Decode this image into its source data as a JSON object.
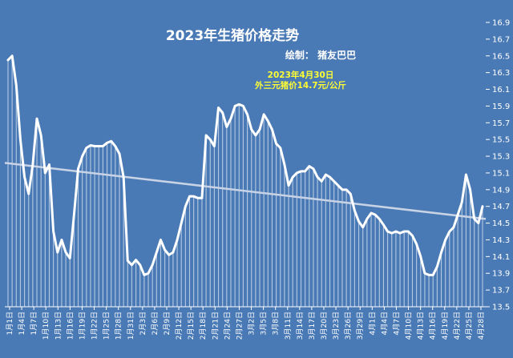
{
  "chart_data": {
    "type": "line",
    "title": "2023年生猪价格走势",
    "credit": "绘制： 猪友巴巴",
    "annotations": [
      "2023年4月30日",
      "外三元猪价14.7元/公斤"
    ],
    "y_axis_position": "right",
    "ylim": [
      13.5,
      16.9
    ],
    "yticks": [
      13.5,
      13.7,
      13.9,
      14.1,
      14.3,
      14.5,
      14.7,
      14.9,
      15.1,
      15.3,
      15.5,
      15.7,
      15.9,
      16.1,
      16.3,
      16.5,
      16.7,
      16.9
    ],
    "x_tick_labels": [
      "1月1日",
      "1月4日",
      "1月7日",
      "1月10日",
      "1月13日",
      "1月16日",
      "1月19日",
      "1月22日",
      "1月25日",
      "1月28日",
      "1月31日",
      "2月3日",
      "2月6日",
      "2月9日",
      "2月12日",
      "2月15日",
      "2月18日",
      "2月21日",
      "2月24日",
      "2月27日",
      "3月2日",
      "3月5日",
      "3月8日",
      "3月11日",
      "3月14日",
      "3月17日",
      "3月20日",
      "3月23日",
      "3月26日",
      "3月29日",
      "4月1日",
      "4月4日",
      "4月7日",
      "4月10日",
      "4月13日",
      "4月16日",
      "4月19日",
      "4月22日",
      "4月25日",
      "4月28日"
    ],
    "series": [
      {
        "values": [
          16.45,
          16.5,
          16.15,
          15.5,
          15.05,
          14.85,
          15.2,
          15.75,
          15.55,
          15.1,
          15.2,
          14.4,
          14.15,
          14.3,
          14.15,
          14.08,
          14.6,
          15.15,
          15.3,
          15.4,
          15.43,
          15.42,
          15.42,
          15.42,
          15.46,
          15.48,
          15.42,
          15.33,
          15.05,
          14.05,
          14.0,
          14.06,
          14.0,
          13.88,
          13.9,
          14.0,
          14.15,
          14.3,
          14.18,
          14.12,
          14.15,
          14.3,
          14.5,
          14.7,
          14.82,
          14.82,
          14.8,
          14.8,
          15.55,
          15.5,
          15.42,
          15.88,
          15.82,
          15.65,
          15.75,
          15.9,
          15.92,
          15.9,
          15.8,
          15.62,
          15.55,
          15.62,
          15.8,
          15.72,
          15.62,
          15.45,
          15.4,
          15.2,
          14.95,
          15.05,
          15.1,
          15.12,
          15.12,
          15.18,
          15.15,
          15.05,
          15.0,
          15.08,
          15.05,
          15.0,
          14.95,
          14.9,
          14.9,
          14.85,
          14.65,
          14.52,
          14.45,
          14.55,
          14.62,
          14.6,
          14.55,
          14.48,
          14.4,
          14.38,
          14.4,
          14.38,
          14.4,
          14.4,
          14.35,
          14.25,
          14.1,
          13.9,
          13.88,
          13.88,
          13.98,
          14.15,
          14.3,
          14.4,
          14.45,
          14.6,
          14.75,
          15.08,
          14.9,
          14.55,
          14.5,
          14.7
        ]
      },
      {
        "name": "trend",
        "values": [
          15.22,
          14.55
        ]
      }
    ],
    "colors": {
      "background": "#4a7ab5",
      "line": "#ffffff",
      "fill_bars": "#c8d6ea",
      "trend": "#c9d3e6",
      "annotation": "#ffff33"
    }
  }
}
